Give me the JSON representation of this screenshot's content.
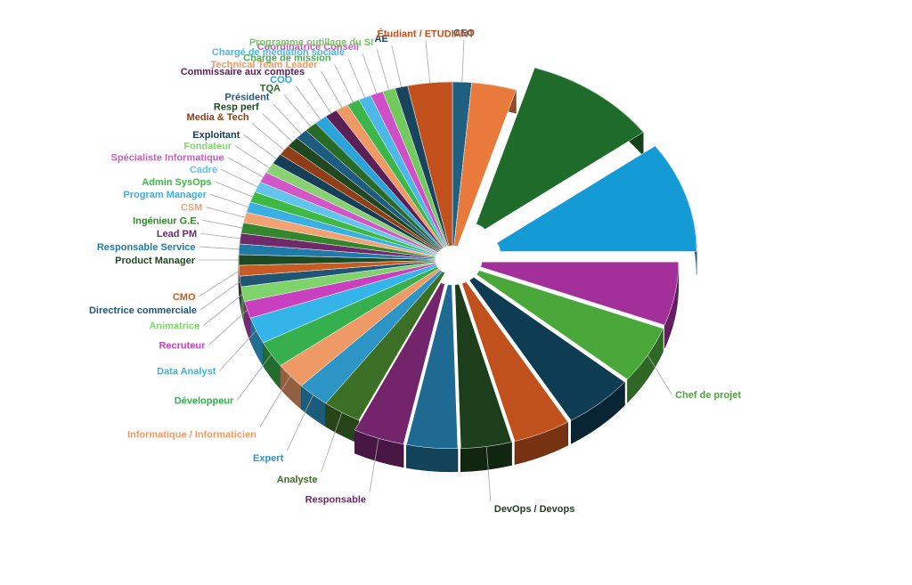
{
  "chart_data": {
    "type": "pie",
    "title": "",
    "three_d": true,
    "exploded": true,
    "legend": "none",
    "slices": [
      {
        "label": "CEO",
        "value": 1.5,
        "color": "#1f6080"
      },
      {
        "label": "",
        "value": 3.5,
        "color": "#ea7a3c"
      },
      {
        "label": "",
        "value": 10.5,
        "color": "#1f6b2a"
      },
      {
        "label": "",
        "value": 10.5,
        "color": "#149bd6"
      },
      {
        "label": "",
        "value": 6,
        "color": "#a3309a"
      },
      {
        "label": "Chef de projet",
        "value": 5.5,
        "color": "#4aa83a"
      },
      {
        "label": "",
        "value": 5.5,
        "color": "#0e3c52"
      },
      {
        "label": "",
        "value": 4.5,
        "color": "#c0501c"
      },
      {
        "label": "DevOps / Devops",
        "value": 4,
        "color": "#1c3e1a"
      },
      {
        "label": "",
        "value": 4,
        "color": "#1e6a93"
      },
      {
        "label": "Responsable",
        "value": 4,
        "color": "#73246b"
      },
      {
        "label": "Analyste",
        "value": 3,
        "color": "#3b6f26"
      },
      {
        "label": "Expert",
        "value": 2.5,
        "color": "#2c95c5"
      },
      {
        "label": "Informatique / Informaticien",
        "value": 2.5,
        "color": "#ef9a66"
      },
      {
        "label": "Développeur",
        "value": 2.5,
        "color": "#36b04c"
      },
      {
        "label": "Data Analyst",
        "value": 2.5,
        "color": "#35b4ea"
      },
      {
        "label": "Recruteur",
        "value": 1.6,
        "color": "#c83fbf"
      },
      {
        "label": "Animatrice",
        "value": 1.4,
        "color": "#7ed36a"
      },
      {
        "label": "Directrice commerciale",
        "value": 1,
        "color": "#1f5575"
      },
      {
        "label": "CMO",
        "value": 1,
        "color": "#c75b24"
      },
      {
        "label": "Product Manager",
        "value": 1,
        "color": "#1d4a22"
      },
      {
        "label": "Responsable Service",
        "value": 1,
        "color": "#1f7aa8"
      },
      {
        "label": "Lead PM",
        "value": 1,
        "color": "#702a6a"
      },
      {
        "label": "Ingénieur G.E.",
        "value": 1,
        "color": "#33862c"
      },
      {
        "label": "CSM",
        "value": 1,
        "color": "#f0a273"
      },
      {
        "label": "Program Manager",
        "value": 1,
        "color": "#3ab0e2"
      },
      {
        "label": "Admin SysOps",
        "value": 1,
        "color": "#3fb844"
      },
      {
        "label": "Cadre",
        "value": 1,
        "color": "#62c3ec"
      },
      {
        "label": "Spécialiste Informatique",
        "value": 1,
        "color": "#d157c8"
      },
      {
        "label": "Fondateur",
        "value": 1,
        "color": "#88d273"
      },
      {
        "label": "Exploitant",
        "value": 1,
        "color": "#163f57"
      },
      {
        "label": "Media & Tech",
        "value": 1,
        "color": "#8f3e17"
      },
      {
        "label": "Resp perf",
        "value": 1,
        "color": "#1f4720"
      },
      {
        "label": "Président",
        "value": 1,
        "color": "#1f5a80"
      },
      {
        "label": "TQA",
        "value": 1,
        "color": "#276b26"
      },
      {
        "label": "COO",
        "value": 1,
        "color": "#2aa5db"
      },
      {
        "label": "Commissaire aux comptes",
        "value": 1,
        "color": "#5a1f55"
      },
      {
        "label": "Technical Team Leader",
        "value": 1,
        "color": "#ee9966"
      },
      {
        "label": "Chargé de mission",
        "value": 1,
        "color": "#3cb54a"
      },
      {
        "label": "Chargé de médiation sociale",
        "value": 1,
        "color": "#4cb8ea"
      },
      {
        "label": "Coordinatrice Conseil",
        "value": 1,
        "color": "#cf4fc6"
      },
      {
        "label": "Programme outillage du SI",
        "value": 1,
        "color": "#72c95e"
      },
      {
        "label": "AE",
        "value": 1,
        "color": "#19445e"
      },
      {
        "label": "Étudiant / ETUDIANT",
        "value": 3.5,
        "color": "#c2501d"
      }
    ]
  }
}
